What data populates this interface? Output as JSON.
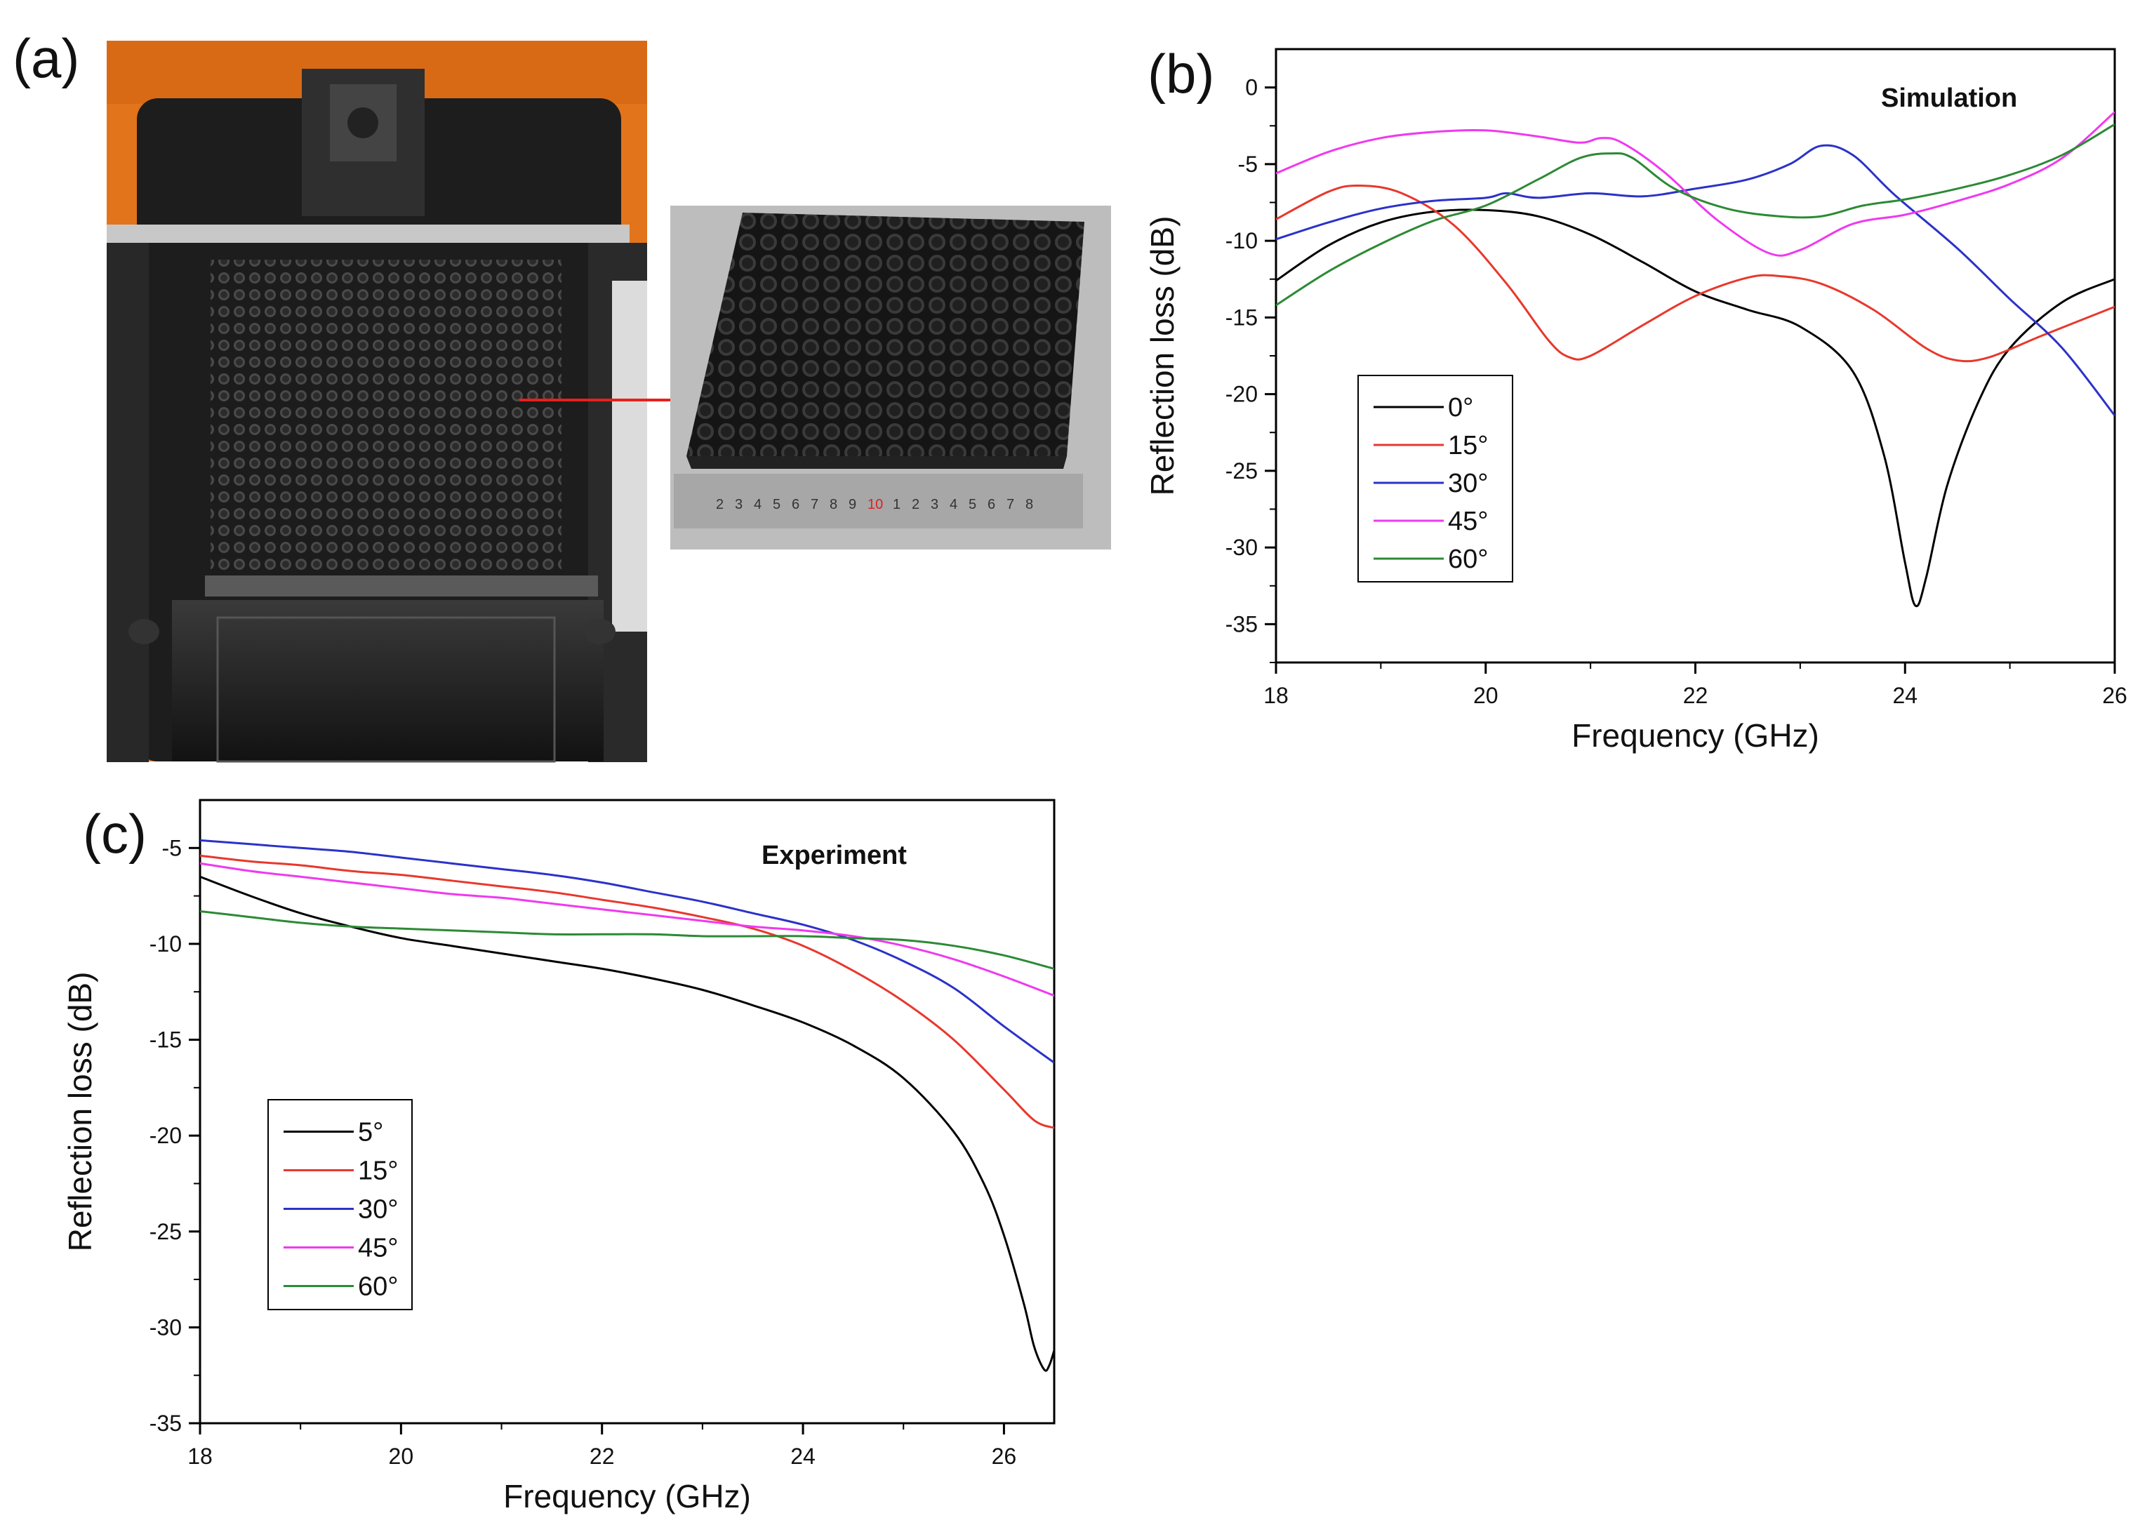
{
  "figure": {
    "panel_labels": [
      "(a)",
      "(b)",
      "(c)"
    ]
  },
  "colors": {
    "black": "#000000",
    "red": "#e8382c",
    "blue": "#2b32c8",
    "magenta": "#ef39ef",
    "green": "#2c8a35",
    "printer_orange": "#e2741c",
    "printer_dark": "#262626"
  },
  "ruler": {
    "digits": [
      "2",
      "3",
      "4",
      "5",
      "6",
      "7",
      "8",
      "9",
      "10",
      "1",
      "2",
      "3",
      "4",
      "5",
      "6",
      "7",
      "8"
    ]
  },
  "chart_data": [
    {
      "id": "b",
      "type": "line",
      "title": "Simulation",
      "xlabel": "Frequency (GHz)",
      "ylabel": "Reflection loss (dB)",
      "xlim": [
        18,
        26
      ],
      "ylim": [
        -37.5,
        2.5
      ],
      "xticks": [
        18,
        20,
        22,
        24,
        26
      ],
      "yticks": [
        0,
        -5,
        -10,
        -15,
        -20,
        -25,
        -30,
        -35
      ],
      "legend_position": "middle-left",
      "grid": false,
      "series": [
        {
          "name": "0°",
          "color": "#000000",
          "points": [
            [
              18,
              -12.6
            ],
            [
              18.5,
              -10.3
            ],
            [
              19,
              -8.8
            ],
            [
              19.5,
              -8.1
            ],
            [
              20,
              -8.0
            ],
            [
              20.5,
              -8.4
            ],
            [
              21,
              -9.6
            ],
            [
              21.5,
              -11.4
            ],
            [
              22,
              -13.3
            ],
            [
              22.5,
              -14.5
            ],
            [
              23,
              -15.6
            ],
            [
              23.5,
              -18.5
            ],
            [
              23.8,
              -24
            ],
            [
              24.0,
              -31
            ],
            [
              24.1,
              -33.8
            ],
            [
              24.2,
              -32
            ],
            [
              24.4,
              -26
            ],
            [
              24.7,
              -20.5
            ],
            [
              25,
              -17
            ],
            [
              25.5,
              -14
            ],
            [
              26,
              -12.5
            ]
          ]
        },
        {
          "name": "15°",
          "color": "#e8382c",
          "points": [
            [
              18,
              -8.6
            ],
            [
              18.5,
              -6.8
            ],
            [
              18.8,
              -6.4
            ],
            [
              19.2,
              -6.9
            ],
            [
              19.7,
              -9.0
            ],
            [
              20.2,
              -12.8
            ],
            [
              20.6,
              -16.5
            ],
            [
              20.8,
              -17.6
            ],
            [
              21.0,
              -17.5
            ],
            [
              21.5,
              -15.5
            ],
            [
              22,
              -13.6
            ],
            [
              22.5,
              -12.4
            ],
            [
              22.8,
              -12.3
            ],
            [
              23.2,
              -12.8
            ],
            [
              23.7,
              -14.5
            ],
            [
              24.2,
              -17.0
            ],
            [
              24.5,
              -17.8
            ],
            [
              24.8,
              -17.6
            ],
            [
              25.3,
              -16.2
            ],
            [
              26,
              -14.3
            ]
          ]
        },
        {
          "name": "30°",
          "color": "#2b32c8",
          "points": [
            [
              18,
              -9.9
            ],
            [
              18.5,
              -8.8
            ],
            [
              19,
              -7.9
            ],
            [
              19.5,
              -7.4
            ],
            [
              20,
              -7.2
            ],
            [
              20.2,
              -6.9
            ],
            [
              20.5,
              -7.2
            ],
            [
              21,
              -6.9
            ],
            [
              21.5,
              -7.1
            ],
            [
              22,
              -6.6
            ],
            [
              22.5,
              -6.0
            ],
            [
              22.9,
              -5.0
            ],
            [
              23.2,
              -3.8
            ],
            [
              23.5,
              -4.4
            ],
            [
              23.9,
              -7.0
            ],
            [
              24.5,
              -10.5
            ],
            [
              25,
              -13.8
            ],
            [
              25.5,
              -17.0
            ],
            [
              26,
              -21.4
            ]
          ]
        },
        {
          "name": "45°",
          "color": "#ef39ef",
          "points": [
            [
              18,
              -5.6
            ],
            [
              18.5,
              -4.2
            ],
            [
              19,
              -3.3
            ],
            [
              19.5,
              -2.9
            ],
            [
              20,
              -2.8
            ],
            [
              20.5,
              -3.2
            ],
            [
              20.9,
              -3.6
            ],
            [
              21.1,
              -3.3
            ],
            [
              21.3,
              -3.6
            ],
            [
              21.7,
              -5.5
            ],
            [
              22.2,
              -8.6
            ],
            [
              22.7,
              -10.8
            ],
            [
              23.0,
              -10.6
            ],
            [
              23.5,
              -8.9
            ],
            [
              24,
              -8.3
            ],
            [
              24.5,
              -7.4
            ],
            [
              25,
              -6.3
            ],
            [
              25.5,
              -4.6
            ],
            [
              26,
              -1.6
            ]
          ]
        },
        {
          "name": "60°",
          "color": "#2c8a35",
          "points": [
            [
              18,
              -14.2
            ],
            [
              18.5,
              -12.0
            ],
            [
              19,
              -10.2
            ],
            [
              19.5,
              -8.7
            ],
            [
              20,
              -7.7
            ],
            [
              20.5,
              -6.0
            ],
            [
              20.9,
              -4.6
            ],
            [
              21.2,
              -4.3
            ],
            [
              21.4,
              -4.6
            ],
            [
              21.8,
              -6.6
            ],
            [
              22.3,
              -7.9
            ],
            [
              22.8,
              -8.4
            ],
            [
              23.2,
              -8.4
            ],
            [
              23.6,
              -7.7
            ],
            [
              24,
              -7.3
            ],
            [
              24.5,
              -6.6
            ],
            [
              25,
              -5.7
            ],
            [
              25.5,
              -4.4
            ],
            [
              26,
              -2.4
            ]
          ]
        }
      ]
    },
    {
      "id": "c",
      "type": "line",
      "title": "Experiment",
      "xlabel": "Frequency (GHz)",
      "ylabel": "Reflection loss (dB)",
      "xlim": [
        18,
        26.5
      ],
      "ylim": [
        -35,
        -2.5
      ],
      "xticks": [
        18,
        20,
        22,
        24,
        26
      ],
      "yticks": [
        -5,
        -10,
        -15,
        -20,
        -25,
        -30,
        -35
      ],
      "legend_position": "lower-left",
      "grid": false,
      "series": [
        {
          "name": "5°",
          "color": "#000000",
          "points": [
            [
              18,
              -6.5
            ],
            [
              18.5,
              -7.5
            ],
            [
              19,
              -8.4
            ],
            [
              19.5,
              -9.1
            ],
            [
              20,
              -9.7
            ],
            [
              20.5,
              -10.1
            ],
            [
              21,
              -10.5
            ],
            [
              21.5,
              -10.9
            ],
            [
              22,
              -11.3
            ],
            [
              22.5,
              -11.8
            ],
            [
              23,
              -12.4
            ],
            [
              23.5,
              -13.2
            ],
            [
              24,
              -14.1
            ],
            [
              24.5,
              -15.3
            ],
            [
              25,
              -17.0
            ],
            [
              25.5,
              -19.8
            ],
            [
              25.8,
              -22.5
            ],
            [
              26,
              -25.2
            ],
            [
              26.2,
              -28.8
            ],
            [
              26.3,
              -31.0
            ],
            [
              26.4,
              -32.2
            ],
            [
              26.45,
              -32.0
            ],
            [
              26.5,
              -31.2
            ]
          ]
        },
        {
          "name": "15°",
          "color": "#e8382c",
          "points": [
            [
              18,
              -5.4
            ],
            [
              18.5,
              -5.7
            ],
            [
              19,
              -5.9
            ],
            [
              19.5,
              -6.2
            ],
            [
              20,
              -6.4
            ],
            [
              20.5,
              -6.7
            ],
            [
              21,
              -7.0
            ],
            [
              21.5,
              -7.3
            ],
            [
              22,
              -7.7
            ],
            [
              22.5,
              -8.1
            ],
            [
              23,
              -8.6
            ],
            [
              23.5,
              -9.2
            ],
            [
              24,
              -10.1
            ],
            [
              24.5,
              -11.4
            ],
            [
              25,
              -13.0
            ],
            [
              25.5,
              -15.0
            ],
            [
              26,
              -17.6
            ],
            [
              26.3,
              -19.2
            ],
            [
              26.5,
              -19.6
            ]
          ]
        },
        {
          "name": "30°",
          "color": "#2b32c8",
          "points": [
            [
              18,
              -4.6
            ],
            [
              18.5,
              -4.8
            ],
            [
              19,
              -5.0
            ],
            [
              19.5,
              -5.2
            ],
            [
              20,
              -5.5
            ],
            [
              20.5,
              -5.8
            ],
            [
              21,
              -6.1
            ],
            [
              21.5,
              -6.4
            ],
            [
              22,
              -6.8
            ],
            [
              22.5,
              -7.3
            ],
            [
              23,
              -7.8
            ],
            [
              23.5,
              -8.4
            ],
            [
              24,
              -9.0
            ],
            [
              24.5,
              -9.8
            ],
            [
              25,
              -10.9
            ],
            [
              25.5,
              -12.3
            ],
            [
              26,
              -14.3
            ],
            [
              26.5,
              -16.2
            ]
          ]
        },
        {
          "name": "45°",
          "color": "#ef39ef",
          "points": [
            [
              18,
              -5.8
            ],
            [
              18.5,
              -6.2
            ],
            [
              19,
              -6.5
            ],
            [
              19.5,
              -6.8
            ],
            [
              20,
              -7.1
            ],
            [
              20.5,
              -7.4
            ],
            [
              21,
              -7.6
            ],
            [
              21.5,
              -7.9
            ],
            [
              22,
              -8.2
            ],
            [
              22.5,
              -8.5
            ],
            [
              23,
              -8.8
            ],
            [
              23.5,
              -9.1
            ],
            [
              24,
              -9.3
            ],
            [
              24.5,
              -9.6
            ],
            [
              25,
              -10.1
            ],
            [
              25.5,
              -10.8
            ],
            [
              26,
              -11.7
            ],
            [
              26.5,
              -12.7
            ]
          ]
        },
        {
          "name": "60°",
          "color": "#2c8a35",
          "points": [
            [
              18,
              -8.3
            ],
            [
              18.5,
              -8.6
            ],
            [
              19,
              -8.9
            ],
            [
              19.5,
              -9.1
            ],
            [
              20,
              -9.2
            ],
            [
              20.5,
              -9.3
            ],
            [
              21,
              -9.4
            ],
            [
              21.5,
              -9.5
            ],
            [
              22,
              -9.5
            ],
            [
              22.5,
              -9.5
            ],
            [
              23,
              -9.6
            ],
            [
              23.5,
              -9.6
            ],
            [
              24,
              -9.6
            ],
            [
              24.5,
              -9.7
            ],
            [
              25,
              -9.8
            ],
            [
              25.5,
              -10.1
            ],
            [
              26,
              -10.6
            ],
            [
              26.5,
              -11.3
            ]
          ]
        }
      ]
    }
  ]
}
